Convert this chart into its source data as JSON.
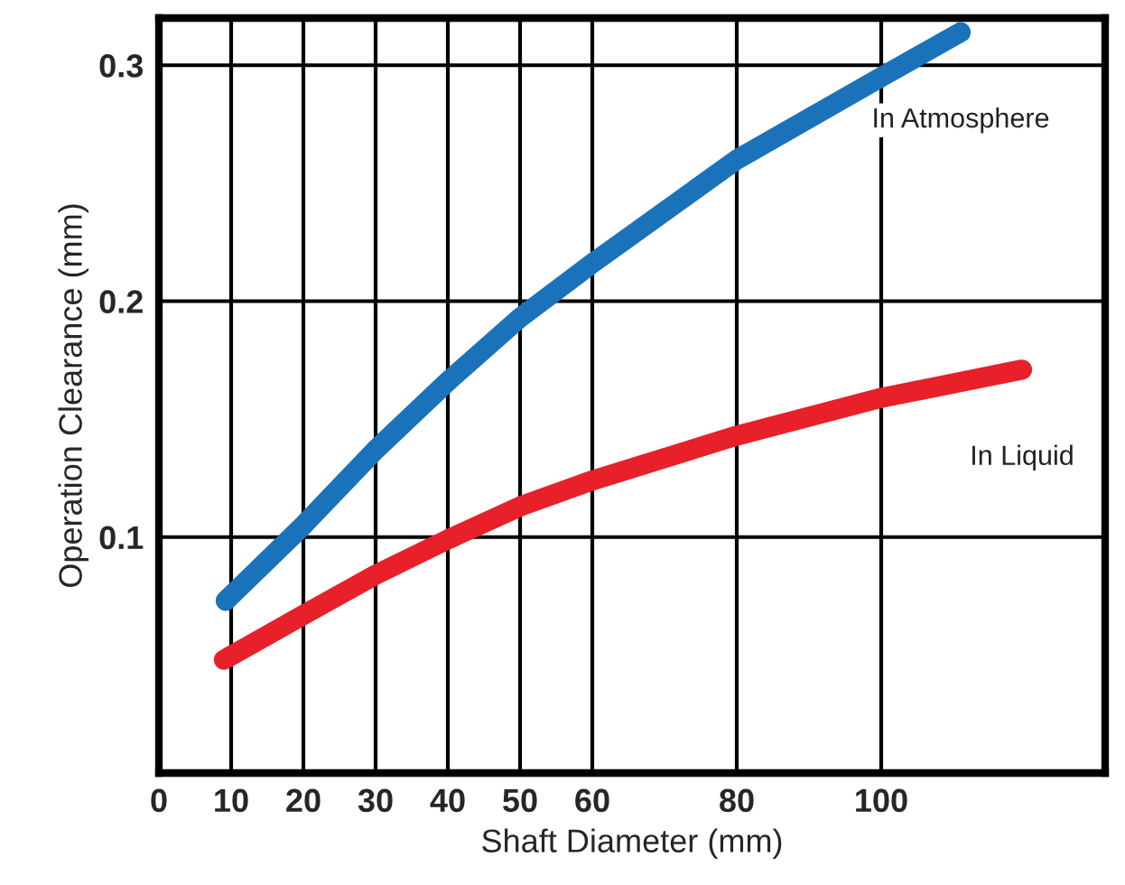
{
  "chart_data": {
    "type": "line",
    "xlabel": "Shaft Diameter (mm)",
    "ylabel": "Operation Clearance (mm)",
    "xlim": [
      0,
      131
    ],
    "ylim": [
      0,
      0.32
    ],
    "xticks": [
      0,
      10,
      20,
      30,
      40,
      50,
      60,
      80,
      100
    ],
    "yticks": [
      0.1,
      0.2,
      0.3
    ],
    "grid": true,
    "marker": "none",
    "line_style": "solid",
    "series": [
      {
        "name": "In Atmosphere",
        "color": "#1a72bb",
        "x": [
          9.25,
          20,
          30,
          40,
          50,
          60,
          80,
          100,
          111
        ],
        "values": [
          0.073,
          0.105,
          0.137,
          0.166,
          0.193,
          0.216,
          0.26,
          0.295,
          0.314
        ]
      },
      {
        "name": "In Liquid",
        "color": "#e8202a",
        "x": [
          9,
          20,
          30,
          40,
          50,
          60,
          80,
          100,
          119.5
        ],
        "values": [
          0.048,
          0.067,
          0.084,
          0.099,
          0.113,
          0.124,
          0.143,
          0.159,
          0.171
        ]
      }
    ]
  }
}
